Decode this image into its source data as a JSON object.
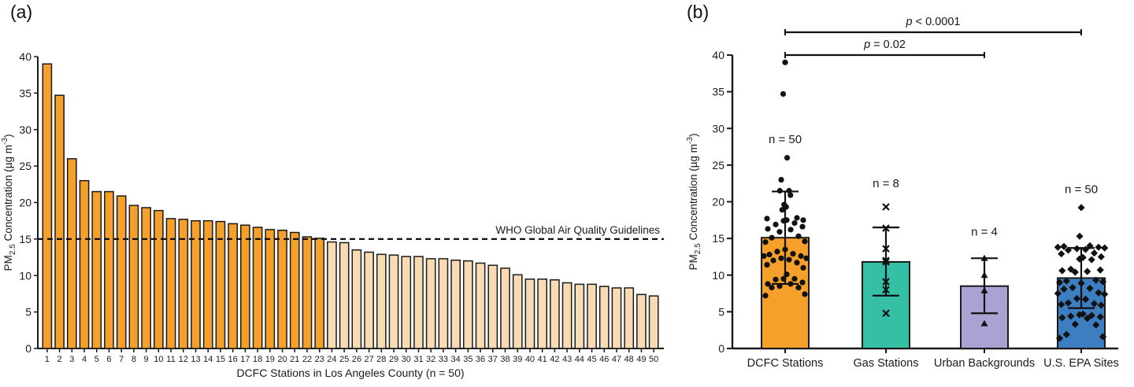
{
  "panels": {
    "a_label": "(a)",
    "b_label": "(b)"
  },
  "chart_data": [
    {
      "id": "a",
      "type": "bar",
      "title": "",
      "xlabel": "DCFC Stations in Los Angeles County (n = 50)",
      "ylabel": "PM2.5 Concentration (µg m-3)",
      "ylabel_parts": [
        {
          "t": "PM",
          "style": "normal"
        },
        {
          "t": "2.5",
          "style": "sub"
        },
        {
          "t": " Concentration (µg m",
          "style": "normal"
        },
        {
          "t": "-3",
          "style": "sup"
        },
        {
          "t": ")",
          "style": "normal"
        }
      ],
      "ylim": [
        0,
        40
      ],
      "ytick_step": 5,
      "grid": false,
      "categories": [
        "1",
        "2",
        "3",
        "4",
        "5",
        "6",
        "7",
        "8",
        "9",
        "10",
        "11",
        "12",
        "13",
        "14",
        "15",
        "16",
        "17",
        "18",
        "19",
        "20",
        "21",
        "22",
        "23",
        "24",
        "25",
        "26",
        "27",
        "28",
        "29",
        "30",
        "31",
        "32",
        "33",
        "34",
        "35",
        "36",
        "37",
        "38",
        "39",
        "40",
        "41",
        "42",
        "43",
        "44",
        "45",
        "46",
        "47",
        "48",
        "49",
        "50"
      ],
      "values": [
        39.0,
        34.7,
        26.0,
        23.0,
        21.5,
        21.5,
        20.9,
        19.6,
        19.3,
        18.9,
        17.8,
        17.7,
        17.5,
        17.5,
        17.4,
        17.1,
        16.9,
        16.6,
        16.3,
        16.2,
        15.9,
        15.3,
        15.1,
        14.6,
        14.5,
        13.5,
        13.2,
        12.9,
        12.8,
        12.6,
        12.6,
        12.3,
        12.3,
        12.1,
        12.0,
        11.7,
        11.4,
        11.0,
        10.1,
        9.5,
        9.5,
        9.4,
        9.0,
        8.8,
        8.8,
        8.5,
        8.3,
        8.3,
        7.4,
        7.2
      ],
      "threshold": {
        "value": 15,
        "label": "WHO Global Air Quality Guidelines",
        "style": "dashed"
      },
      "colors": {
        "above_threshold": "#F5A02B",
        "below_threshold": "#F8DBB2",
        "bar_border": "#1a1a1a",
        "threshold_line": "#111111"
      }
    },
    {
      "id": "b",
      "type": "bar-scatter",
      "title": "",
      "xlabel": "",
      "ylabel": "PM2.5 Concentration (µg m-3)",
      "ylabel_parts": [
        {
          "t": "PM",
          "style": "normal"
        },
        {
          "t": "2.5",
          "style": "sub"
        },
        {
          "t": " Concentration (µg m",
          "style": "normal"
        },
        {
          "t": "-3",
          "style": "sup"
        },
        {
          "t": ")",
          "style": "normal"
        }
      ],
      "ylim": [
        0,
        40
      ],
      "ytick_step": 5,
      "grid": false,
      "groups": [
        {
          "label": "DCFC Stations",
          "n_label": "n = 50",
          "n_label_y": 28.0,
          "mean": 15.1,
          "err_low": 8.8,
          "err_high": 21.4,
          "color": "#F5A02B",
          "marker": "circle",
          "points": [
            39.0,
            34.7,
            26.0,
            23.0,
            21.5,
            21.5,
            20.9,
            19.6,
            19.3,
            18.9,
            17.8,
            17.7,
            17.5,
            17.5,
            17.4,
            17.1,
            16.9,
            16.6,
            16.3,
            16.2,
            15.9,
            15.3,
            15.1,
            14.6,
            14.5,
            13.5,
            13.2,
            12.9,
            12.8,
            12.6,
            12.6,
            12.3,
            12.3,
            12.1,
            12.0,
            11.7,
            11.4,
            11.0,
            10.1,
            9.5,
            9.5,
            9.4,
            9.0,
            8.8,
            8.8,
            8.5,
            8.3,
            8.3,
            7.4,
            7.2
          ]
        },
        {
          "label": "Gas Stations",
          "n_label": "n = 8",
          "n_label_y": 22.0,
          "mean": 11.8,
          "err_low": 7.2,
          "err_high": 16.5,
          "color": "#35BFA4",
          "marker": "x",
          "points": [
            19.3,
            16.4,
            13.6,
            12.0,
            11.8,
            9.1,
            8.0,
            4.8
          ]
        },
        {
          "label": "Urban Backgrounds",
          "n_label": "n = 4",
          "n_label_y": 15.4,
          "mean": 8.5,
          "err_low": 4.8,
          "err_high": 12.3,
          "color": "#ABA2D4",
          "marker": "triangle",
          "points": [
            12.3,
            10.0,
            7.9,
            3.4
          ]
        },
        {
          "label": "U.S. EPA Sites",
          "n_label": "n = 50",
          "n_label_y": 21.2,
          "mean": 9.6,
          "err_low": 5.5,
          "err_high": 13.7,
          "color": "#3D7EC0",
          "marker": "diamond",
          "points": [
            19.2,
            15.3,
            14.0,
            13.9,
            13.8,
            13.8,
            13.7,
            13.6,
            13.5,
            13.4,
            13.0,
            12.9,
            12.5,
            12.4,
            12.2,
            12.1,
            10.8,
            10.7,
            10.6,
            10.5,
            10.4,
            9.3,
            9.2,
            9.1,
            9.0,
            8.9,
            8.3,
            8.2,
            8.1,
            7.6,
            7.5,
            7.4,
            6.8,
            6.7,
            6.2,
            6.1,
            6.0,
            5.9,
            4.7,
            4.6,
            4.5,
            4.4,
            4.3,
            4.2,
            4.1,
            3.3,
            3.2,
            1.9,
            1.6,
            1.4
          ]
        }
      ],
      "significance": [
        {
          "from": 0,
          "to": 3,
          "sym": "p",
          "rest": " < 0.0001"
        },
        {
          "from": 0,
          "to": 2,
          "sym": "p",
          "rest": " = 0.02"
        }
      ],
      "marker_color": "#111111",
      "bar_border": "#1a1a1a"
    }
  ]
}
